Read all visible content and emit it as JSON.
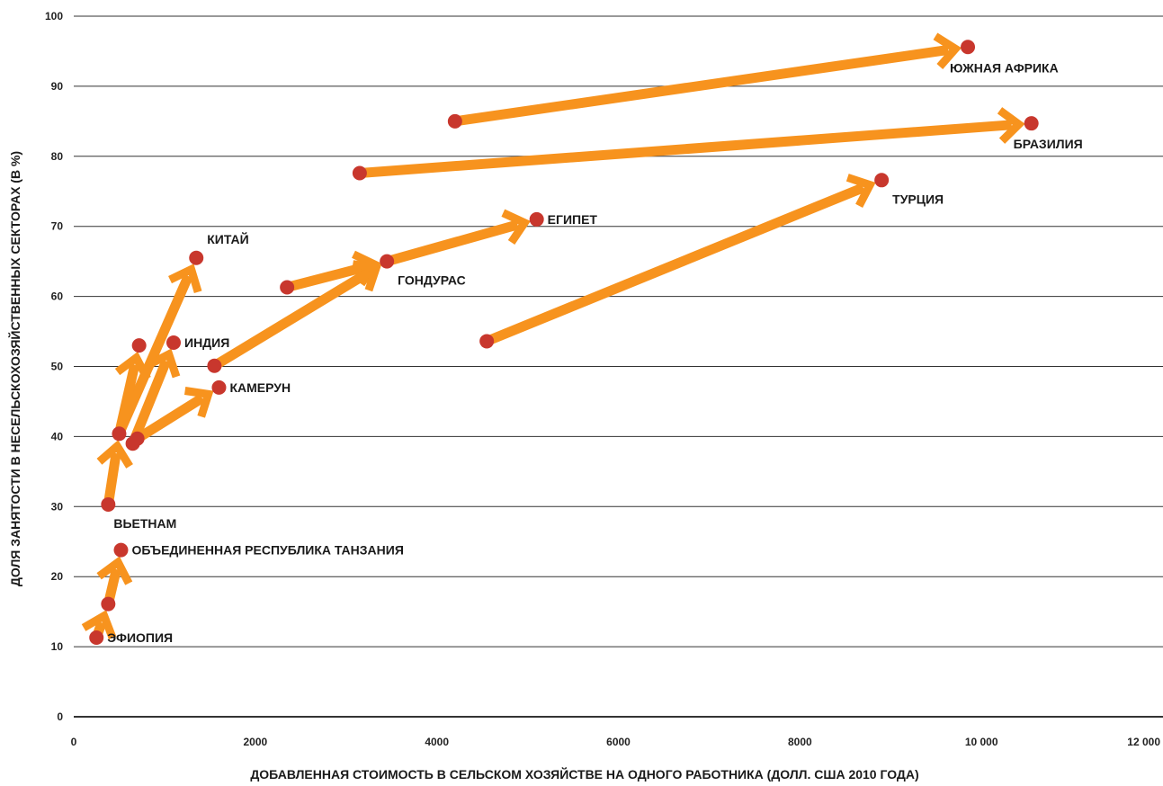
{
  "chart_data": {
    "type": "scatter",
    "title": "",
    "xlabel": "ДОБАВЛЕННАЯ СТОИМОСТЬ В СЕЛЬСКОМ ХОЗЯЙСТВЕ НА ОДНОГО РАБОТНИКА (ДОЛЛ. США 2010 ГОДА)",
    "ylabel": "ДОЛЯ ЗАНЯТОСТИ В НЕСЕЛЬСКОХОЗЯЙСТВЕННЫХ СЕКТОРАХ (В %)",
    "xlim": [
      0,
      12000
    ],
    "ylim": [
      0,
      100
    ],
    "x_ticks": [
      0,
      2000,
      4000,
      6000,
      8000,
      10000,
      12000
    ],
    "x_tick_labels": [
      "0",
      "2000",
      "4000",
      "6000",
      "8000",
      "10 000",
      "12 000"
    ],
    "y_ticks": [
      0,
      10,
      20,
      30,
      40,
      50,
      60,
      70,
      80,
      90,
      100
    ],
    "y_tick_labels": [
      "0",
      "10",
      "20",
      "30",
      "40",
      "50",
      "60",
      "70",
      "80",
      "90",
      "100"
    ],
    "grid": "horizontal",
    "colors": {
      "arrow": "#F7931E",
      "point": "#C8372D",
      "grid": "#333333"
    },
    "series": [
      {
        "name": "ЮЖНАЯ АФРИКА",
        "points": [
          [
            4200,
            85
          ],
          [
            9850,
            95.6
          ]
        ],
        "label_pos": "below"
      },
      {
        "name": "БРАЗИЛИЯ",
        "points": [
          [
            3150,
            77.6
          ],
          [
            10550,
            84.7
          ]
        ],
        "label_pos": "below"
      },
      {
        "name": "ЕГИПЕТ",
        "points": [
          [
            2350,
            61.3
          ],
          [
            3450,
            65
          ],
          [
            5100,
            71
          ]
        ],
        "label_pos": "right"
      },
      {
        "name": "ТУРЦИЯ",
        "points": [
          [
            4550,
            53.6
          ],
          [
            8900,
            76.6
          ]
        ],
        "label_pos": "below-right"
      },
      {
        "name": "ГОНДУРАС",
        "points": [
          [
            1550,
            50.1
          ],
          [
            3450,
            65
          ]
        ],
        "label_pos": "below-right"
      },
      {
        "name": "КИТАЙ",
        "points": [
          [
            500,
            40.4
          ],
          [
            1350,
            65.5
          ]
        ],
        "label_pos": "above-right"
      },
      {
        "name": "ИНДИЯ",
        "points": [
          [
            650,
            39
          ],
          [
            1100,
            53.4
          ]
        ],
        "label_pos": "right"
      },
      {
        "name": "КАМЕРУН",
        "points": [
          [
            700,
            39.7
          ],
          [
            1600,
            47
          ]
        ],
        "label_pos": "right"
      },
      {
        "name": "ВЬЕТНАМ",
        "points": [
          [
            380,
            30.3
          ],
          [
            500,
            40.4
          ],
          [
            720,
            53
          ]
        ],
        "label_pos": "below"
      },
      {
        "name": "ОБЪЕДИНЕННАЯ РЕСПУБЛИКА ТАНЗАНИЯ",
        "points": [
          [
            380,
            16.1
          ],
          [
            520,
            23.8
          ]
        ],
        "label_pos": "right"
      },
      {
        "name": "ЭФИОПИЯ",
        "points": [
          [
            250,
            11.3
          ],
          [
            380,
            16.1
          ]
        ],
        "label_pos": "right"
      }
    ]
  }
}
